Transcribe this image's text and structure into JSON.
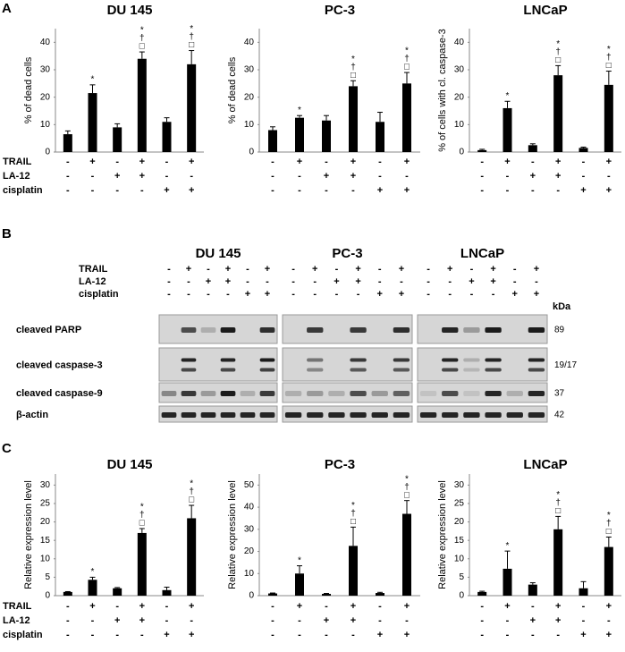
{
  "panel_labels": [
    "A",
    "B",
    "C"
  ],
  "treatments": {
    "labels": [
      "TRAIL",
      "LA-12",
      "cisplatin"
    ],
    "signs": [
      [
        "-",
        "+",
        "-",
        "+",
        "-",
        "+"
      ],
      [
        "-",
        "-",
        "+",
        "+",
        "-",
        "-"
      ],
      [
        "-",
        "-",
        "-",
        "-",
        "+",
        "+"
      ]
    ]
  },
  "chart_data": [
    {
      "type": "bar",
      "title": "DU 145",
      "ylabel": "% of dead cells",
      "color": "#000000",
      "values": [
        6.5,
        21.5,
        9,
        34,
        11,
        32
      ],
      "errors": [
        1.2,
        3,
        1.3,
        2.5,
        1.5,
        5
      ],
      "annotations": [
        [],
        [
          "*"
        ],
        [],
        [
          "*",
          "†",
          "□"
        ],
        [],
        [
          "*",
          "†",
          "□"
        ]
      ],
      "ylim": [
        0,
        45
      ],
      "yticks": [
        0,
        10,
        20,
        30,
        40
      ]
    },
    {
      "type": "bar",
      "title": "PC-3",
      "ylabel": "% of dead cells",
      "color": "#000000",
      "values": [
        8,
        12.5,
        11.5,
        24,
        11,
        25
      ],
      "errors": [
        1.2,
        0.8,
        1.8,
        2,
        3.5,
        4
      ],
      "annotations": [
        [],
        [
          "*"
        ],
        [],
        [
          "*",
          "†",
          "□"
        ],
        [],
        [
          "*",
          "†",
          "□"
        ]
      ],
      "ylim": [
        0,
        45
      ],
      "yticks": [
        0,
        10,
        20,
        30,
        40
      ]
    },
    {
      "type": "bar",
      "title": "LNCaP",
      "ylabel": "% of cells with cl. caspase-3",
      "color": "#000000",
      "values": [
        0.7,
        16,
        2.5,
        28,
        1.5,
        24.5
      ],
      "errors": [
        0.3,
        2.5,
        0.5,
        3.5,
        0.3,
        5
      ],
      "annotations": [
        [],
        [
          "*"
        ],
        [],
        [
          "*",
          "†",
          "□"
        ],
        [],
        [
          "*",
          "†",
          "□"
        ]
      ],
      "ylim": [
        0,
        45
      ],
      "yticks": [
        0,
        10,
        20,
        30,
        40
      ]
    },
    {
      "type": "bar",
      "title": "DU 145",
      "ylabel": "Relative expression level",
      "color": "#000000",
      "values": [
        1,
        4.3,
        2,
        17,
        1.5,
        21
      ],
      "errors": [
        0.1,
        0.7,
        0.2,
        1.2,
        0.8,
        3.5
      ],
      "annotations": [
        [],
        [
          "*"
        ],
        [],
        [
          "*",
          "†",
          "□"
        ],
        [],
        [
          "*",
          "†",
          "□"
        ]
      ],
      "ylim": [
        0,
        33
      ],
      "yticks": [
        0,
        5,
        10,
        15,
        20,
        25,
        30
      ]
    },
    {
      "type": "bar",
      "title": "PC-3",
      "ylabel": "Relative expression level",
      "color": "#000000",
      "values": [
        1,
        10,
        0.8,
        22.5,
        1.2,
        37
      ],
      "errors": [
        0.2,
        3.5,
        0.2,
        8.5,
        0.3,
        6
      ],
      "annotations": [
        [],
        [
          "*"
        ],
        [],
        [
          "*",
          "†",
          "□"
        ],
        [],
        [
          "*",
          "†",
          "□"
        ]
      ],
      "ylim": [
        0,
        55
      ],
      "yticks": [
        0,
        10,
        20,
        30,
        40,
        50
      ]
    },
    {
      "type": "bar",
      "title": "LNCaP",
      "ylabel": "Relative expression level",
      "color": "#000000",
      "values": [
        1,
        7.3,
        3,
        18,
        2,
        13.2
      ],
      "errors": [
        0.2,
        4.8,
        0.5,
        3.5,
        1.8,
        2.7
      ],
      "annotations": [
        [],
        [
          "*"
        ],
        [],
        [
          "*",
          "†",
          "□"
        ],
        [],
        [
          "*",
          "†",
          "□"
        ]
      ],
      "ylim": [
        0,
        33
      ],
      "yticks": [
        0,
        5,
        10,
        15,
        20,
        25,
        30
      ]
    }
  ],
  "blot": {
    "cell_lines": [
      "DU 145",
      "PC-3",
      "LNCaP"
    ],
    "rows": [
      "cleaved PARP",
      "cleaved caspase-3",
      "cleaved caspase-9",
      "β-actin"
    ],
    "kda_label": "kDa",
    "kda": [
      89,
      "19/17",
      37,
      42
    ]
  }
}
